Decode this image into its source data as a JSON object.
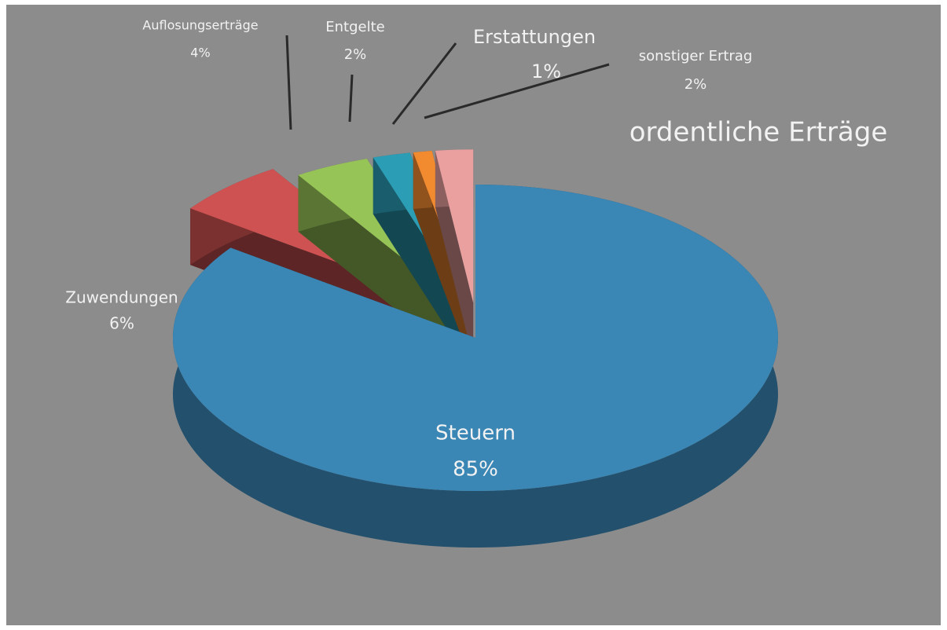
{
  "chart_data": {
    "type": "pie",
    "title": "ordentliche Erträge",
    "categories": [
      "Steuern",
      "Zuwendungen",
      "Auflosungserträge",
      "Entgelte",
      "Erstattungen",
      "sonstiger Ertrag"
    ],
    "values": [
      85,
      6,
      4,
      2,
      1,
      2
    ],
    "value_labels": [
      "85%",
      "6%",
      "4%",
      "2%",
      "1%",
      "2%"
    ],
    "colors": [
      "#3a86b4",
      "#cf5252",
      "#97c457",
      "#2b9db5",
      "#f28a30",
      "#eba0a0"
    ]
  }
}
